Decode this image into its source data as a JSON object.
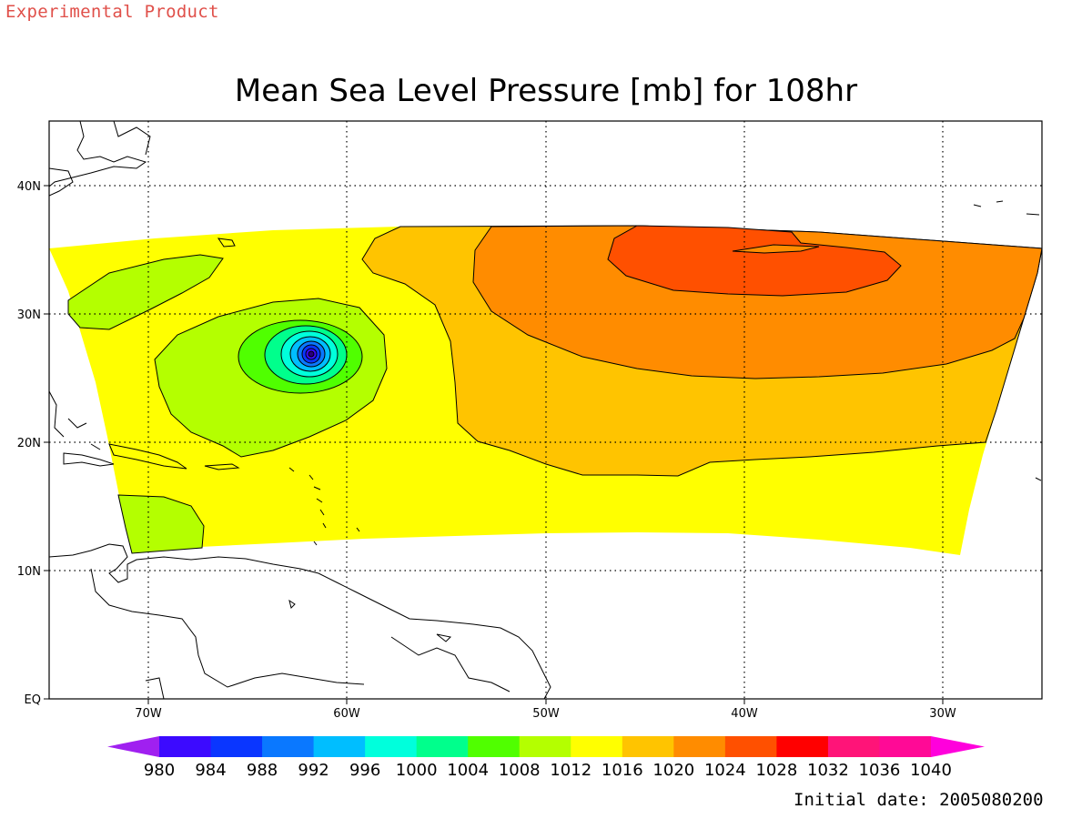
{
  "header": {
    "experimental_label": "Experimental Product",
    "title": "Mean Sea Level Pressure [mb] for 108hr",
    "initial_date": "Initial date: 2005080200"
  },
  "map": {
    "lon_range": [
      -75,
      -25
    ],
    "lat_range": [
      0,
      45
    ],
    "lat_labels": [
      "40N",
      "30N",
      "20N",
      "10N",
      "EQ"
    ],
    "lon_labels": [
      "70W",
      "60W",
      "50W",
      "40W",
      "30W"
    ],
    "grid": "dotted"
  },
  "colorbar": {
    "labels": [
      "980",
      "984",
      "988",
      "992",
      "996",
      "1000",
      "1004",
      "1008",
      "1012",
      "1016",
      "1020",
      "1024",
      "1028",
      "1032",
      "1036",
      "1040"
    ],
    "colors": [
      "#a020f0",
      "#3c0aff",
      "#0a36ff",
      "#0a78ff",
      "#00beff",
      "#00ffdc",
      "#00ff8c",
      "#50ff00",
      "#b4ff00",
      "#ffff00",
      "#ffc400",
      "#ff8c00",
      "#ff5000",
      "#ff0000",
      "#ff1478",
      "#ff0a96",
      "#ff00dc"
    ]
  },
  "legend_colors": {
    "pressure_1008_1012": "#b4ff00",
    "pressure_1012_1016": "#ffff00",
    "pressure_1016_1020": "#ffc400",
    "pressure_1020_1024": "#ff8c00",
    "pressure_1024_1028": "#ff5000",
    "low_center": "#3c0aff"
  }
}
